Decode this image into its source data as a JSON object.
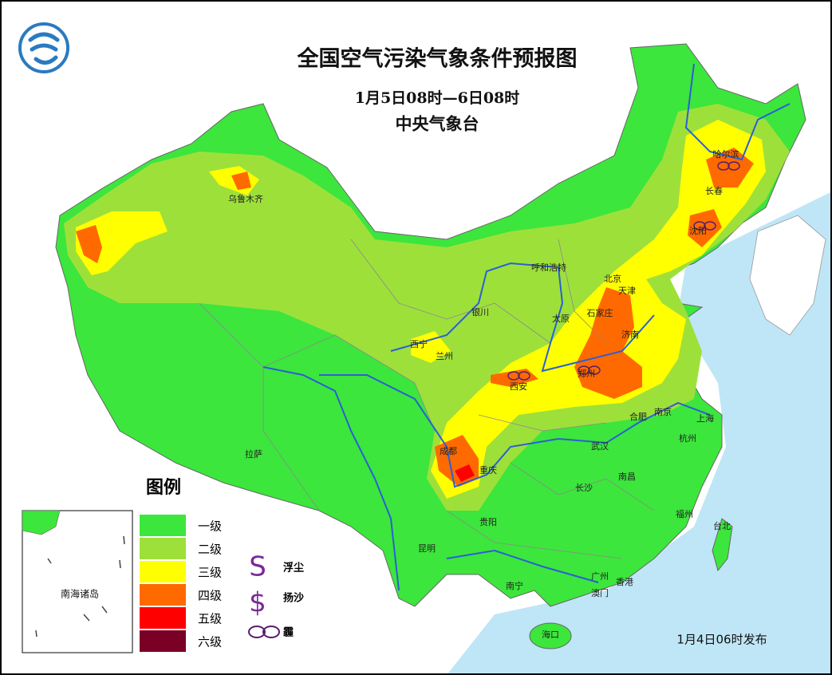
{
  "header": {
    "title": "全国空气污染气象条件预报图",
    "period": "1月5日08时—6日08时",
    "issuer": "中央气象台"
  },
  "legend": {
    "title": "图例",
    "levels": [
      {
        "label": "一级",
        "color": "#3ce63c"
      },
      {
        "label": "二级",
        "color": "#9ee03a"
      },
      {
        "label": "三级",
        "color": "#ffff00"
      },
      {
        "label": "四级",
        "color": "#ff6a00"
      },
      {
        "label": "五级",
        "color": "#ff0000"
      },
      {
        "label": "六级",
        "color": "#7a0026"
      }
    ],
    "symbols": [
      {
        "glyph": "S",
        "label": "浮尘"
      },
      {
        "glyph": "$",
        "label": "扬沙"
      },
      {
        "label": "霾"
      }
    ]
  },
  "cities": [
    "乌鲁木齐",
    "哈尔滨",
    "长春",
    "沈阳",
    "呼和浩特",
    "北京",
    "天津",
    "银川",
    "太原",
    "石家庄",
    "济南",
    "西宁",
    "兰州",
    "郑州",
    "西安",
    "合肥",
    "南京",
    "上海",
    "杭州",
    "成都",
    "拉萨",
    "重庆",
    "武汉",
    "长沙",
    "南昌",
    "贵阳",
    "福州",
    "台北",
    "昆明",
    "南宁",
    "广州",
    "香港",
    "澳门",
    "海口"
  ],
  "inset": {
    "label": "南海诸岛"
  },
  "footer": {
    "issued": "1月4日06时发布"
  }
}
